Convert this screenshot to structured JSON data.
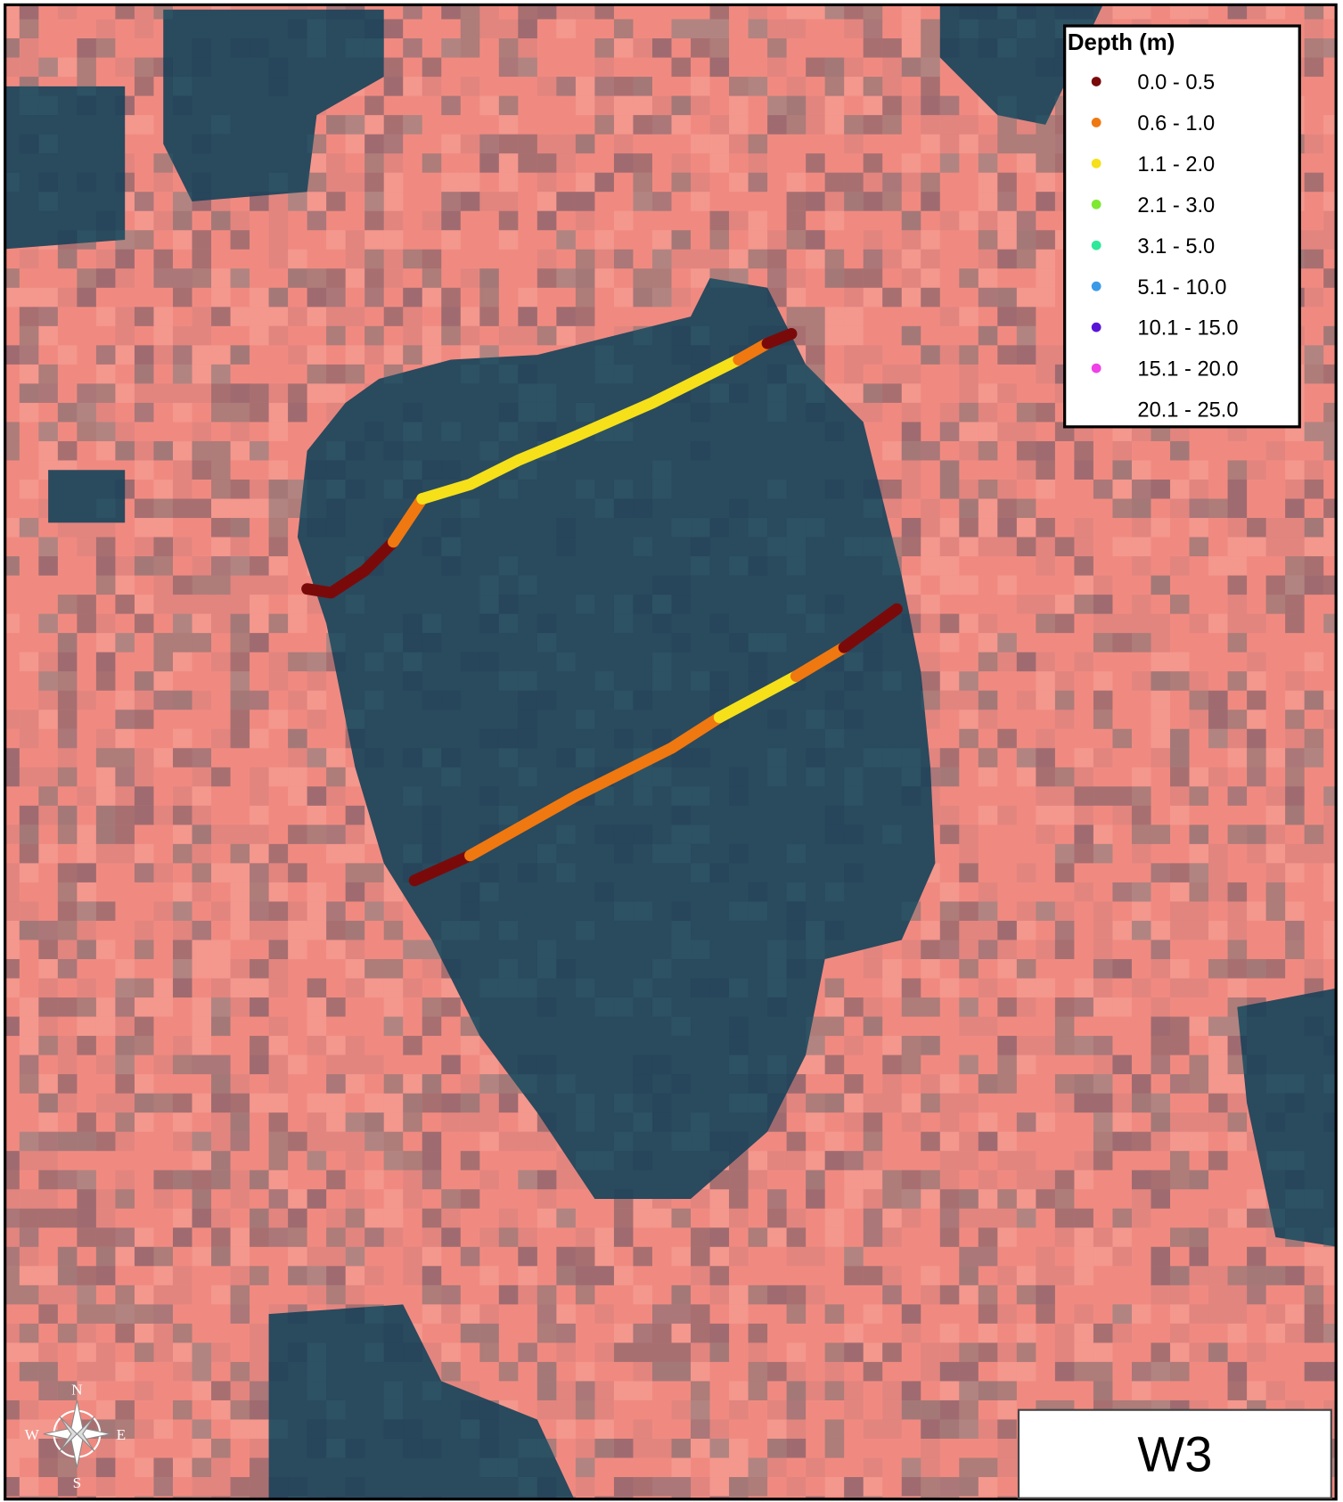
{
  "legend": {
    "title": "Depth (m)",
    "items": [
      {
        "label": "0.0 - 0.5",
        "color": "#7a0a0a"
      },
      {
        "label": "0.6 - 1.0",
        "color": "#f07810"
      },
      {
        "label": "1.1 - 2.0",
        "color": "#f5e01a"
      },
      {
        "label": "2.1 - 3.0",
        "color": "#7ee832"
      },
      {
        "label": "3.1 - 5.0",
        "color": "#2ee89a"
      },
      {
        "label": "5.1 - 10.0",
        "color": "#3a9ae8"
      },
      {
        "label": "10.1 - 15.0",
        "color": "#5a14d8"
      },
      {
        "label": "15.1 - 20.0",
        "color": "#f040e8"
      },
      {
        "label": "20.1 - 25.0",
        "color": "#ffffff"
      }
    ]
  },
  "site_label": "W3",
  "compass": {
    "north": "N",
    "east": "E",
    "south": "S",
    "west": "W"
  }
}
